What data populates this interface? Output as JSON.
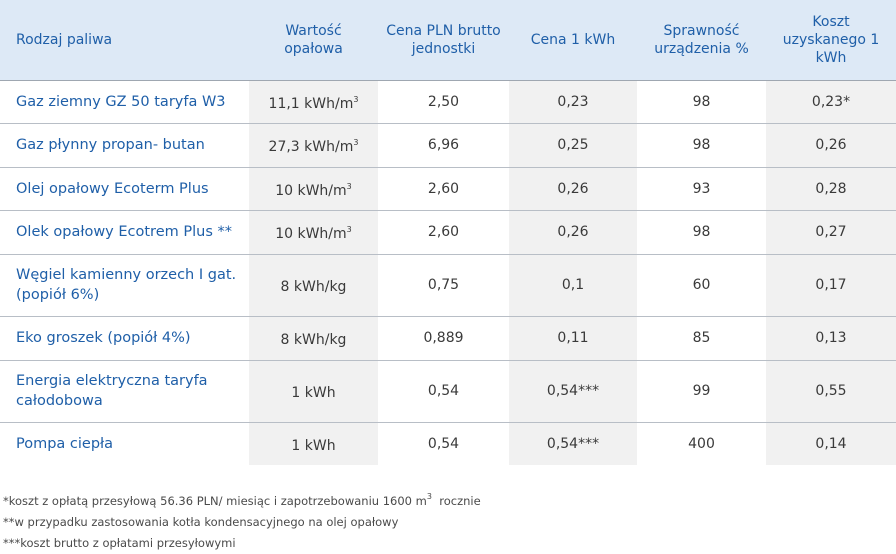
{
  "headers": [
    "Rodzaj paliwa",
    "Wartość opałowa",
    "Cena PLN brutto jednostki",
    "Cena 1 kWh",
    "Sprawność urządzenia %",
    "Koszt uzyskanego 1 kWh"
  ],
  "rows": [
    {
      "name": "Gaz ziemny GZ 50 taryfa W3",
      "calorific": "11,1 kWh/m",
      "calorific_sup": "3",
      "price": "2,50",
      "kwh_price": "0,23",
      "efficiency": "98",
      "cost": "0,23*"
    },
    {
      "name": "Gaz płynny propan- butan",
      "calorific": "27,3 kWh/m",
      "calorific_sup": "3",
      "price": "6,96",
      "kwh_price": "0,25",
      "efficiency": "98",
      "cost": "0,26"
    },
    {
      "name": "Olej opałowy Ecoterm Plus",
      "calorific": "10 kWh/m",
      "calorific_sup": "3",
      "price": "2,60",
      "kwh_price": "0,26",
      "efficiency": "93",
      "cost": "0,28"
    },
    {
      "name": "Olek opałowy Ecotrem Plus **",
      "calorific": "10 kWh/m",
      "calorific_sup": "3",
      "price": "2,60",
      "kwh_price": "0,26",
      "efficiency": "98",
      "cost": "0,27"
    },
    {
      "name": "Węgiel kamienny orzech I gat. (popiół 6%)",
      "calorific": "8 kWh/kg",
      "calorific_sup": "",
      "price": "0,75",
      "kwh_price": "0,1",
      "efficiency": "60",
      "cost": "0,17"
    },
    {
      "name": "Eko groszek (popiół 4%)",
      "calorific": "8 kWh/kg",
      "calorific_sup": "",
      "price": "0,889",
      "kwh_price": "0,11",
      "efficiency": "85",
      "cost": "0,13"
    },
    {
      "name": "Energia elektryczna taryfa całodobowa",
      "calorific": "1 kWh",
      "calorific_sup": "",
      "price": "0,54",
      "kwh_price": "0,54***",
      "efficiency": "99",
      "cost": "0,55"
    },
    {
      "name": "Pompa ciepła",
      "calorific": "1 kWh",
      "calorific_sup": "",
      "price": "0,54",
      "kwh_price": "0,54***",
      "efficiency": "400",
      "cost": "0,14"
    }
  ],
  "footnotes": {
    "note1_a": "*koszt z opłatą przesyłową 56.36 PLN/ miesiąc i zapotrzebowaniu 1600 m",
    "note1_sup": "3",
    "note1_b": "rocznie",
    "note2": "**w przypadku zastosowania kotła kondensacyjnego na olej opałowy",
    "note3": "***koszt brutto z opłatami przesyłowymi"
  },
  "colors": {
    "header_bg": "#dde9f6",
    "header_text": "#1f5fa8",
    "shaded_col": "#f1f1f1"
  }
}
